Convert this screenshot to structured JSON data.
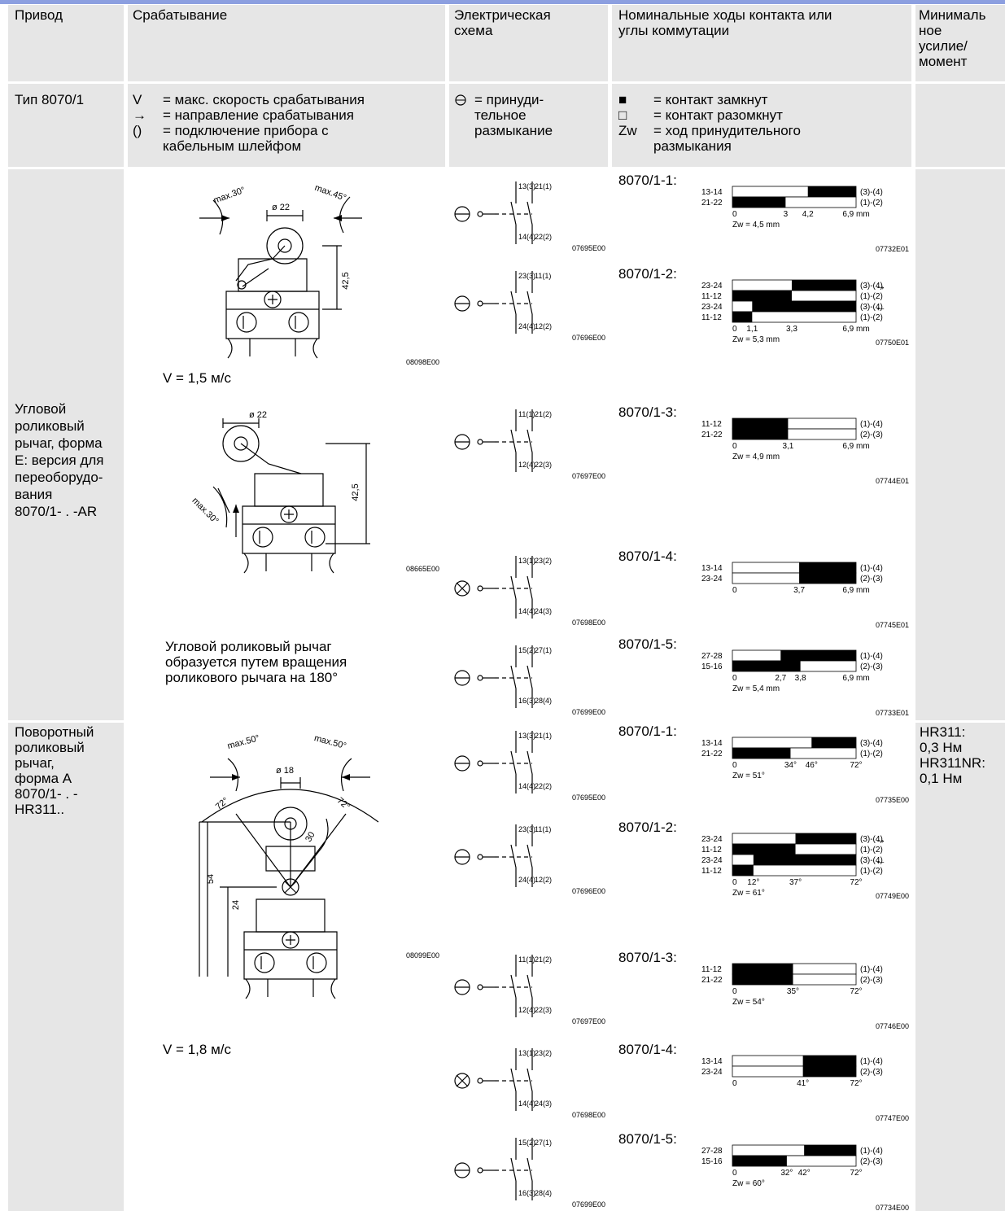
{
  "header": {
    "drive": [
      "Привод"
    ],
    "actuation": [
      "Срабатывание"
    ],
    "circuit": [
      "Электрическая",
      "схема"
    ],
    "travel": [
      "Номинальные ходы контакта или",
      "углы коммутации"
    ],
    "force": [
      "Минималь",
      "ное",
      "усилие/",
      "момент"
    ]
  },
  "legend": {
    "type": "Тип 8070/1",
    "actuation": [
      {
        "symbol": "V",
        "text": [
          "= макс. скорость срабатывания"
        ]
      },
      {
        "symbol": "→",
        "text": [
          "= направление срабатывания"
        ]
      },
      {
        "symbol": "()",
        "text": [
          "= подключение прибора с",
          "кабельным шлейфом"
        ]
      }
    ],
    "circuit": [
      "= принуди-",
      "тельное",
      "размыкание"
    ],
    "travel": [
      {
        "symbol": "■",
        "text": [
          "= контакт замкнут"
        ]
      },
      {
        "symbol": "□",
        "text": [
          "= контакт разомкнут"
        ]
      },
      {
        "symbol": "Zw",
        "text": [
          "= ход принудительного",
          "размыкания"
        ]
      }
    ]
  },
  "rows": [
    {
      "drive": [
        "Угловой",
        "роликовый",
        "рычаг, форма",
        "E: версия для",
        "переоборудо-",
        "вания",
        "8070/1- . -AR"
      ],
      "drawings": [
        {
          "labels": [
            "max.30°",
            "max.45°",
            "ø 22",
            "42,5"
          ],
          "code": "08098E00"
        },
        {
          "labels": [
            "ø 22",
            "42,5",
            "max.30°"
          ],
          "code": "08665E00"
        }
      ],
      "speed": "V = 1,5 м/с",
      "note": [
        "Угловой роликовый рычаг",
        "образуется путем вращения",
        "роликового рычага на 180°"
      ],
      "schematics": [
        {
          "top": [
            "13(3)",
            "21(1)"
          ],
          "bottom": [
            "14(4)",
            "22(2)"
          ],
          "code": "07695E00"
        },
        {
          "top": [
            "23(3)",
            "11(1)"
          ],
          "bottom": [
            "24(4)",
            "12(2)"
          ],
          "code": "07696E00"
        },
        {
          "top": [
            "11(1)",
            "21(2)"
          ],
          "bottom": [
            "12(4)",
            "22(3)"
          ],
          "code": "07697E00"
        },
        {
          "top": [
            "13(1)",
            "23(2)"
          ],
          "bottom": [
            "14(4)",
            "24(3)"
          ],
          "code": "07698E00"
        },
        {
          "top": [
            "15(2)",
            "27(1)"
          ],
          "bottom": [
            "16(3)",
            "28(4)"
          ],
          "code": "07699E00"
        }
      ],
      "charts": [
        {
          "title": "8070/1-1:",
          "rows": [
            {
              "left": "13-14",
              "right": "(3)-(4)"
            },
            {
              "left": "21-22",
              "right": "(1)-(2)"
            }
          ],
          "ticks": [
            "0",
            "3",
            "4,2",
            "6,9 mm"
          ],
          "zw": "Zw = 4,5 mm",
          "code": "07732E01"
        },
        {
          "title": "8070/1-2:",
          "rows": [
            {
              "left": "23-24",
              "right": "(3)-(4)",
              "arrow": "→"
            },
            {
              "left": "11-12",
              "right": "(1)-(2)"
            },
            {
              "left": "23-24",
              "right": "(3)-(4)",
              "arrow": "←"
            },
            {
              "left": "11-12",
              "right": "(1)-(2)"
            }
          ],
          "ticks": [
            "0",
            "1,1",
            "3,3",
            "6,9 mm"
          ],
          "zw": "Zw = 5,3 mm",
          "code": "07750E01"
        },
        {
          "title": "8070/1-3:",
          "rows": [
            {
              "left": "11-12",
              "right": "(1)-(4)"
            },
            {
              "left": "21-22",
              "right": "(2)-(3)"
            }
          ],
          "ticks": [
            "0",
            "3,1",
            "6,9 mm"
          ],
          "zw": "Zw = 4,9 mm",
          "code": "07744E01"
        },
        {
          "title": "8070/1-4:",
          "rows": [
            {
              "left": "13-14",
              "right": "(1)-(4)"
            },
            {
              "left": "23-24",
              "right": "(2)-(3)"
            }
          ],
          "ticks": [
            "0",
            "3,7",
            "6,9 mm"
          ],
          "code": "07745E01"
        },
        {
          "title": "8070/1-5:",
          "rows": [
            {
              "left": "27-28",
              "right": "(1)-(4)"
            },
            {
              "left": "15-16",
              "right": "(2)-(3)"
            }
          ],
          "ticks": [
            "0",
            "2,7",
            "3,8",
            "6,9 mm"
          ],
          "zw": "Zw = 5,4 mm",
          "code": "07733E01"
        }
      ]
    },
    {
      "drive": [
        "Поворотный",
        "роликовый",
        "рычаг,",
        "форма A",
        "8070/1- . -",
        "HR311.."
      ],
      "drawings": [
        {
          "labels": [
            "max.50°",
            "max.50°",
            "ø 18",
            "72°",
            "72°",
            "30",
            "54",
            "24"
          ],
          "code": "08099E00"
        }
      ],
      "speed": "V = 1,8 м/с",
      "schematics": [
        {
          "top": [
            "13(3)",
            "21(1)"
          ],
          "bottom": [
            "14(4)",
            "22(2)"
          ],
          "code": "07695E00"
        },
        {
          "top": [
            "23(3)",
            "11(1)"
          ],
          "bottom": [
            "24(4)",
            "12(2)"
          ],
          "code": "07696E00"
        },
        {
          "top": [
            "11(1)",
            "21(2)"
          ],
          "bottom": [
            "12(4)",
            "22(3)"
          ],
          "code": "07697E00"
        },
        {
          "top": [
            "13(1)",
            "23(2)"
          ],
          "bottom": [
            "14(4)",
            "24(3)"
          ],
          "code": "07698E00"
        },
        {
          "top": [
            "15(2)",
            "27(1)"
          ],
          "bottom": [
            "16(3)",
            "28(4)"
          ],
          "code": "07699E00"
        }
      ],
      "charts": [
        {
          "title": "8070/1-1:",
          "rows": [
            {
              "left": "13-14",
              "right": "(3)-(4)"
            },
            {
              "left": "21-22",
              "right": "(1)-(2)"
            }
          ],
          "ticks": [
            "0",
            "34°",
            "46°",
            "72°"
          ],
          "zw": "Zw = 51°",
          "code": "07735E00"
        },
        {
          "title": "8070/1-2:",
          "rows": [
            {
              "left": "23-24",
              "right": "(3)-(4)",
              "arrow": "→"
            },
            {
              "left": "11-12",
              "right": "(1)-(2)"
            },
            {
              "left": "23-24",
              "right": "(3)-(4)",
              "arrow": "←"
            },
            {
              "left": "11-12",
              "right": "(1)-(2)"
            }
          ],
          "ticks": [
            "0",
            "12°",
            "37°",
            "72°"
          ],
          "zw": "Zw = 61°",
          "code": "07749E00"
        },
        {
          "title": "8070/1-3:",
          "rows": [
            {
              "left": "11-12",
              "right": "(1)-(4)"
            },
            {
              "left": "21-22",
              "right": "(2)-(3)"
            }
          ],
          "ticks": [
            "0",
            "35°",
            "72°"
          ],
          "zw": "Zw = 54°",
          "code": "07746E00"
        },
        {
          "title": "8070/1-4:",
          "rows": [
            {
              "left": "13-14",
              "right": "(1)-(4)"
            },
            {
              "left": "23-24",
              "right": "(2)-(3)"
            }
          ],
          "ticks": [
            "0",
            "41°",
            "72°"
          ],
          "code": "07747E00"
        },
        {
          "title": "8070/1-5:",
          "rows": [
            {
              "left": "27-28",
              "right": "(1)-(4)"
            },
            {
              "left": "15-16",
              "right": "(2)-(3)"
            }
          ],
          "ticks": [
            "0",
            "32°",
            "42°",
            "72°"
          ],
          "zw": "Zw = 60°",
          "code": "07734E00"
        }
      ],
      "force": [
        "HR311:",
        "0,3 Нм",
        "HR311NR:",
        "0,1 Нм"
      ]
    }
  ]
}
